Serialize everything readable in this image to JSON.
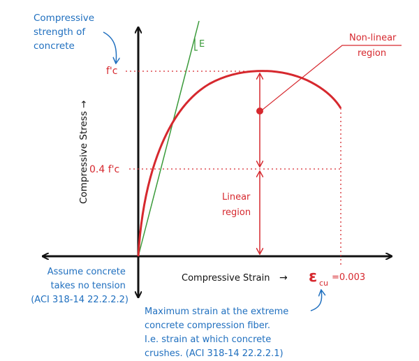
{
  "colors": {
    "axis": "#111111",
    "curve": "#d6282e",
    "modulus_line": "#3a9a3a",
    "annotation_blue": "#1f6fbf",
    "annotation_red": "#d6282e"
  },
  "labels": {
    "compressive_strength_note": [
      "Compressive",
      "strength of",
      "concrete"
    ],
    "fc": "f'c",
    "fc_04": "0.4 f'c",
    "e_label": "E",
    "y_axis": "Compressive Stress →",
    "x_axis": "Compressive Strain",
    "x_axis_arrow": "→",
    "epsilon_symbol": "ε",
    "epsilon_sub": "cu",
    "epsilon_value": "=0.003",
    "nonlinear_region": [
      "Non-linear",
      "region"
    ],
    "linear_region": [
      "Linear",
      "region"
    ],
    "tension_note": [
      "Assume concrete",
      "takes no tension",
      "(ACI 318-14 22.2.2.2)"
    ],
    "max_strain_note": [
      "Maximum strain at the extreme",
      "concrete compression fiber.",
      "I.e. strain at which concrete",
      "crushes. (ACI 318-14 22.2.2.1)"
    ]
  }
}
